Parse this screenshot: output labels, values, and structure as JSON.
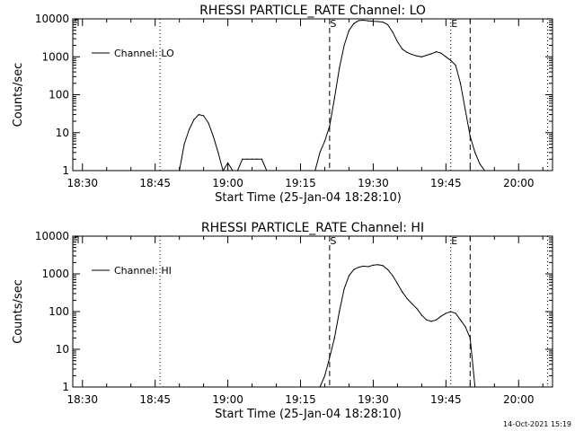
{
  "timestamp": "14-Oct-2021 15:19",
  "chart_data": [
    {
      "type": "line",
      "title": "RHESSI PARTICLE_RATE Channel: LO",
      "xlabel": "Start Time (25-Jan-04 18:28:10)",
      "ylabel": "Counts/sec",
      "y_scale": "log",
      "ylim": [
        1,
        10000
      ],
      "xlim": [
        "18:28",
        "20:07"
      ],
      "x_ticks": [
        "18:30",
        "18:45",
        "19:00",
        "19:15",
        "19:30",
        "19:45",
        "20:00"
      ],
      "y_ticks": [
        "1",
        "10",
        "100",
        "1000",
        "10000"
      ],
      "grid": false,
      "legend": "top-left",
      "series": [
        {
          "name": "Channel: LO",
          "x": [
            "18:50",
            "18:51",
            "18:52",
            "18:53",
            "18:54",
            "18:55",
            "18:56",
            "18:57",
            "18:58",
            "18:59",
            "19:00",
            "19:01",
            "19:02",
            "19:03",
            "19:04",
            "19:05",
            "19:06",
            "19:07",
            "19:08",
            "19:09",
            "19:18",
            "19:19",
            "19:20",
            "19:21",
            "19:22",
            "19:23",
            "19:24",
            "19:25",
            "19:26",
            "19:27",
            "19:28",
            "19:29",
            "19:30",
            "19:31",
            "19:32",
            "19:33",
            "19:34",
            "19:35",
            "19:36",
            "19:37",
            "19:38",
            "19:39",
            "19:40",
            "19:41",
            "19:42",
            "19:43",
            "19:44",
            "19:45",
            "19:46",
            "19:47",
            "19:48",
            "19:49",
            "19:50",
            "19:51",
            "19:52",
            "19:53"
          ],
          "values": [
            1,
            5,
            12,
            22,
            30,
            28,
            18,
            8,
            3,
            1,
            1.6,
            1,
            1,
            2,
            2,
            2,
            2,
            2,
            1,
            1,
            1,
            3,
            6,
            15,
            80,
            500,
            2000,
            5000,
            7500,
            9000,
            9200,
            8800,
            8600,
            8500,
            8200,
            7000,
            4500,
            2500,
            1600,
            1300,
            1150,
            1050,
            1000,
            1100,
            1200,
            1350,
            1250,
            1000,
            800,
            600,
            200,
            40,
            8,
            3,
            1.5,
            1
          ]
        }
      ],
      "markers": {
        "labels": [
          "S",
          "E"
        ],
        "dotted": [
          "18:46",
          "19:46",
          "20:06"
        ],
        "dashed": [
          "19:21",
          "19:50"
        ]
      }
    },
    {
      "type": "line",
      "title": "RHESSI PARTICLE_RATE Channel: HI",
      "xlabel": "Start Time (25-Jan-04 18:28:10)",
      "ylabel": "Counts/sec",
      "y_scale": "log",
      "ylim": [
        1,
        10000
      ],
      "xlim": [
        "18:28",
        "20:07"
      ],
      "x_ticks": [
        "18:30",
        "18:45",
        "19:00",
        "19:15",
        "19:30",
        "19:45",
        "20:00"
      ],
      "y_ticks": [
        "1",
        "10",
        "100",
        "1000",
        "10000"
      ],
      "grid": false,
      "legend": "top-left",
      "series": [
        {
          "name": "Channel: HI",
          "x": [
            "19:19",
            "19:20",
            "19:21",
            "19:22",
            "19:23",
            "19:24",
            "19:25",
            "19:26",
            "19:27",
            "19:28",
            "19:29",
            "19:30",
            "19:31",
            "19:32",
            "19:33",
            "19:34",
            "19:35",
            "19:36",
            "19:37",
            "19:38",
            "19:39",
            "19:40",
            "19:41",
            "19:42",
            "19:43",
            "19:44",
            "19:45",
            "19:46",
            "19:47",
            "19:48",
            "19:49",
            "19:50",
            "19:51"
          ],
          "values": [
            1,
            2,
            6,
            20,
            100,
            400,
            900,
            1300,
            1500,
            1600,
            1550,
            1700,
            1750,
            1650,
            1300,
            900,
            550,
            330,
            220,
            160,
            120,
            80,
            60,
            55,
            60,
            75,
            90,
            100,
            90,
            60,
            40,
            20,
            1
          ]
        }
      ],
      "markers": {
        "labels": [
          "S",
          "E"
        ],
        "dotted": [
          "18:46",
          "19:46",
          "20:06"
        ],
        "dashed": [
          "19:21",
          "19:50"
        ]
      }
    }
  ]
}
